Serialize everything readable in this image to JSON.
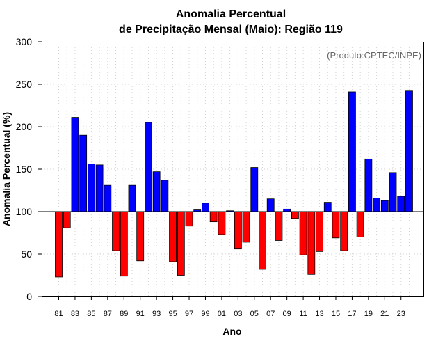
{
  "chart_data": {
    "type": "bar",
    "title_line1": "Anomalia Percentual",
    "title_line2": "de Precipitação Mensal (Maio): Região 119",
    "xlabel": "Ano",
    "ylabel": "Anomalia Percentual (%)",
    "credit": "(Produto:CPTEC/INPE)",
    "ylim": [
      0,
      300
    ],
    "baseline": 100,
    "yticks": [
      "0",
      "50",
      "100",
      "150",
      "200",
      "250",
      "300"
    ],
    "categories": [
      "81",
      "82",
      "83",
      "84",
      "85",
      "86",
      "87",
      "88",
      "89",
      "90",
      "91",
      "92",
      "93",
      "94",
      "95",
      "96",
      "97",
      "98",
      "99",
      "00",
      "01",
      "02",
      "03",
      "04",
      "05",
      "06",
      "07",
      "08",
      "09",
      "10",
      "11",
      "12",
      "13",
      "14",
      "15",
      "16",
      "17",
      "18",
      "19",
      "20",
      "21",
      "22",
      "23",
      "24"
    ],
    "xtick_labels": [
      "81",
      "83",
      "85",
      "87",
      "89",
      "91",
      "93",
      "95",
      "97",
      "99",
      "01",
      "03",
      "05",
      "07",
      "09",
      "11",
      "13",
      "15",
      "17",
      "19",
      "21",
      "23"
    ],
    "values": [
      23,
      81,
      211,
      190,
      156,
      155,
      131,
      54,
      24,
      131,
      42,
      205,
      147,
      137,
      41,
      25,
      83,
      102,
      110,
      88,
      73,
      101,
      56,
      64,
      152,
      32,
      115,
      66,
      103,
      92,
      49,
      26,
      53,
      111,
      69,
      54,
      241,
      70,
      162,
      116,
      113,
      146,
      118,
      242
    ],
    "colors": {
      "above": "#0000ff",
      "below": "#ff0000",
      "outline": "#000000",
      "grid": "#d3d3d3"
    }
  }
}
